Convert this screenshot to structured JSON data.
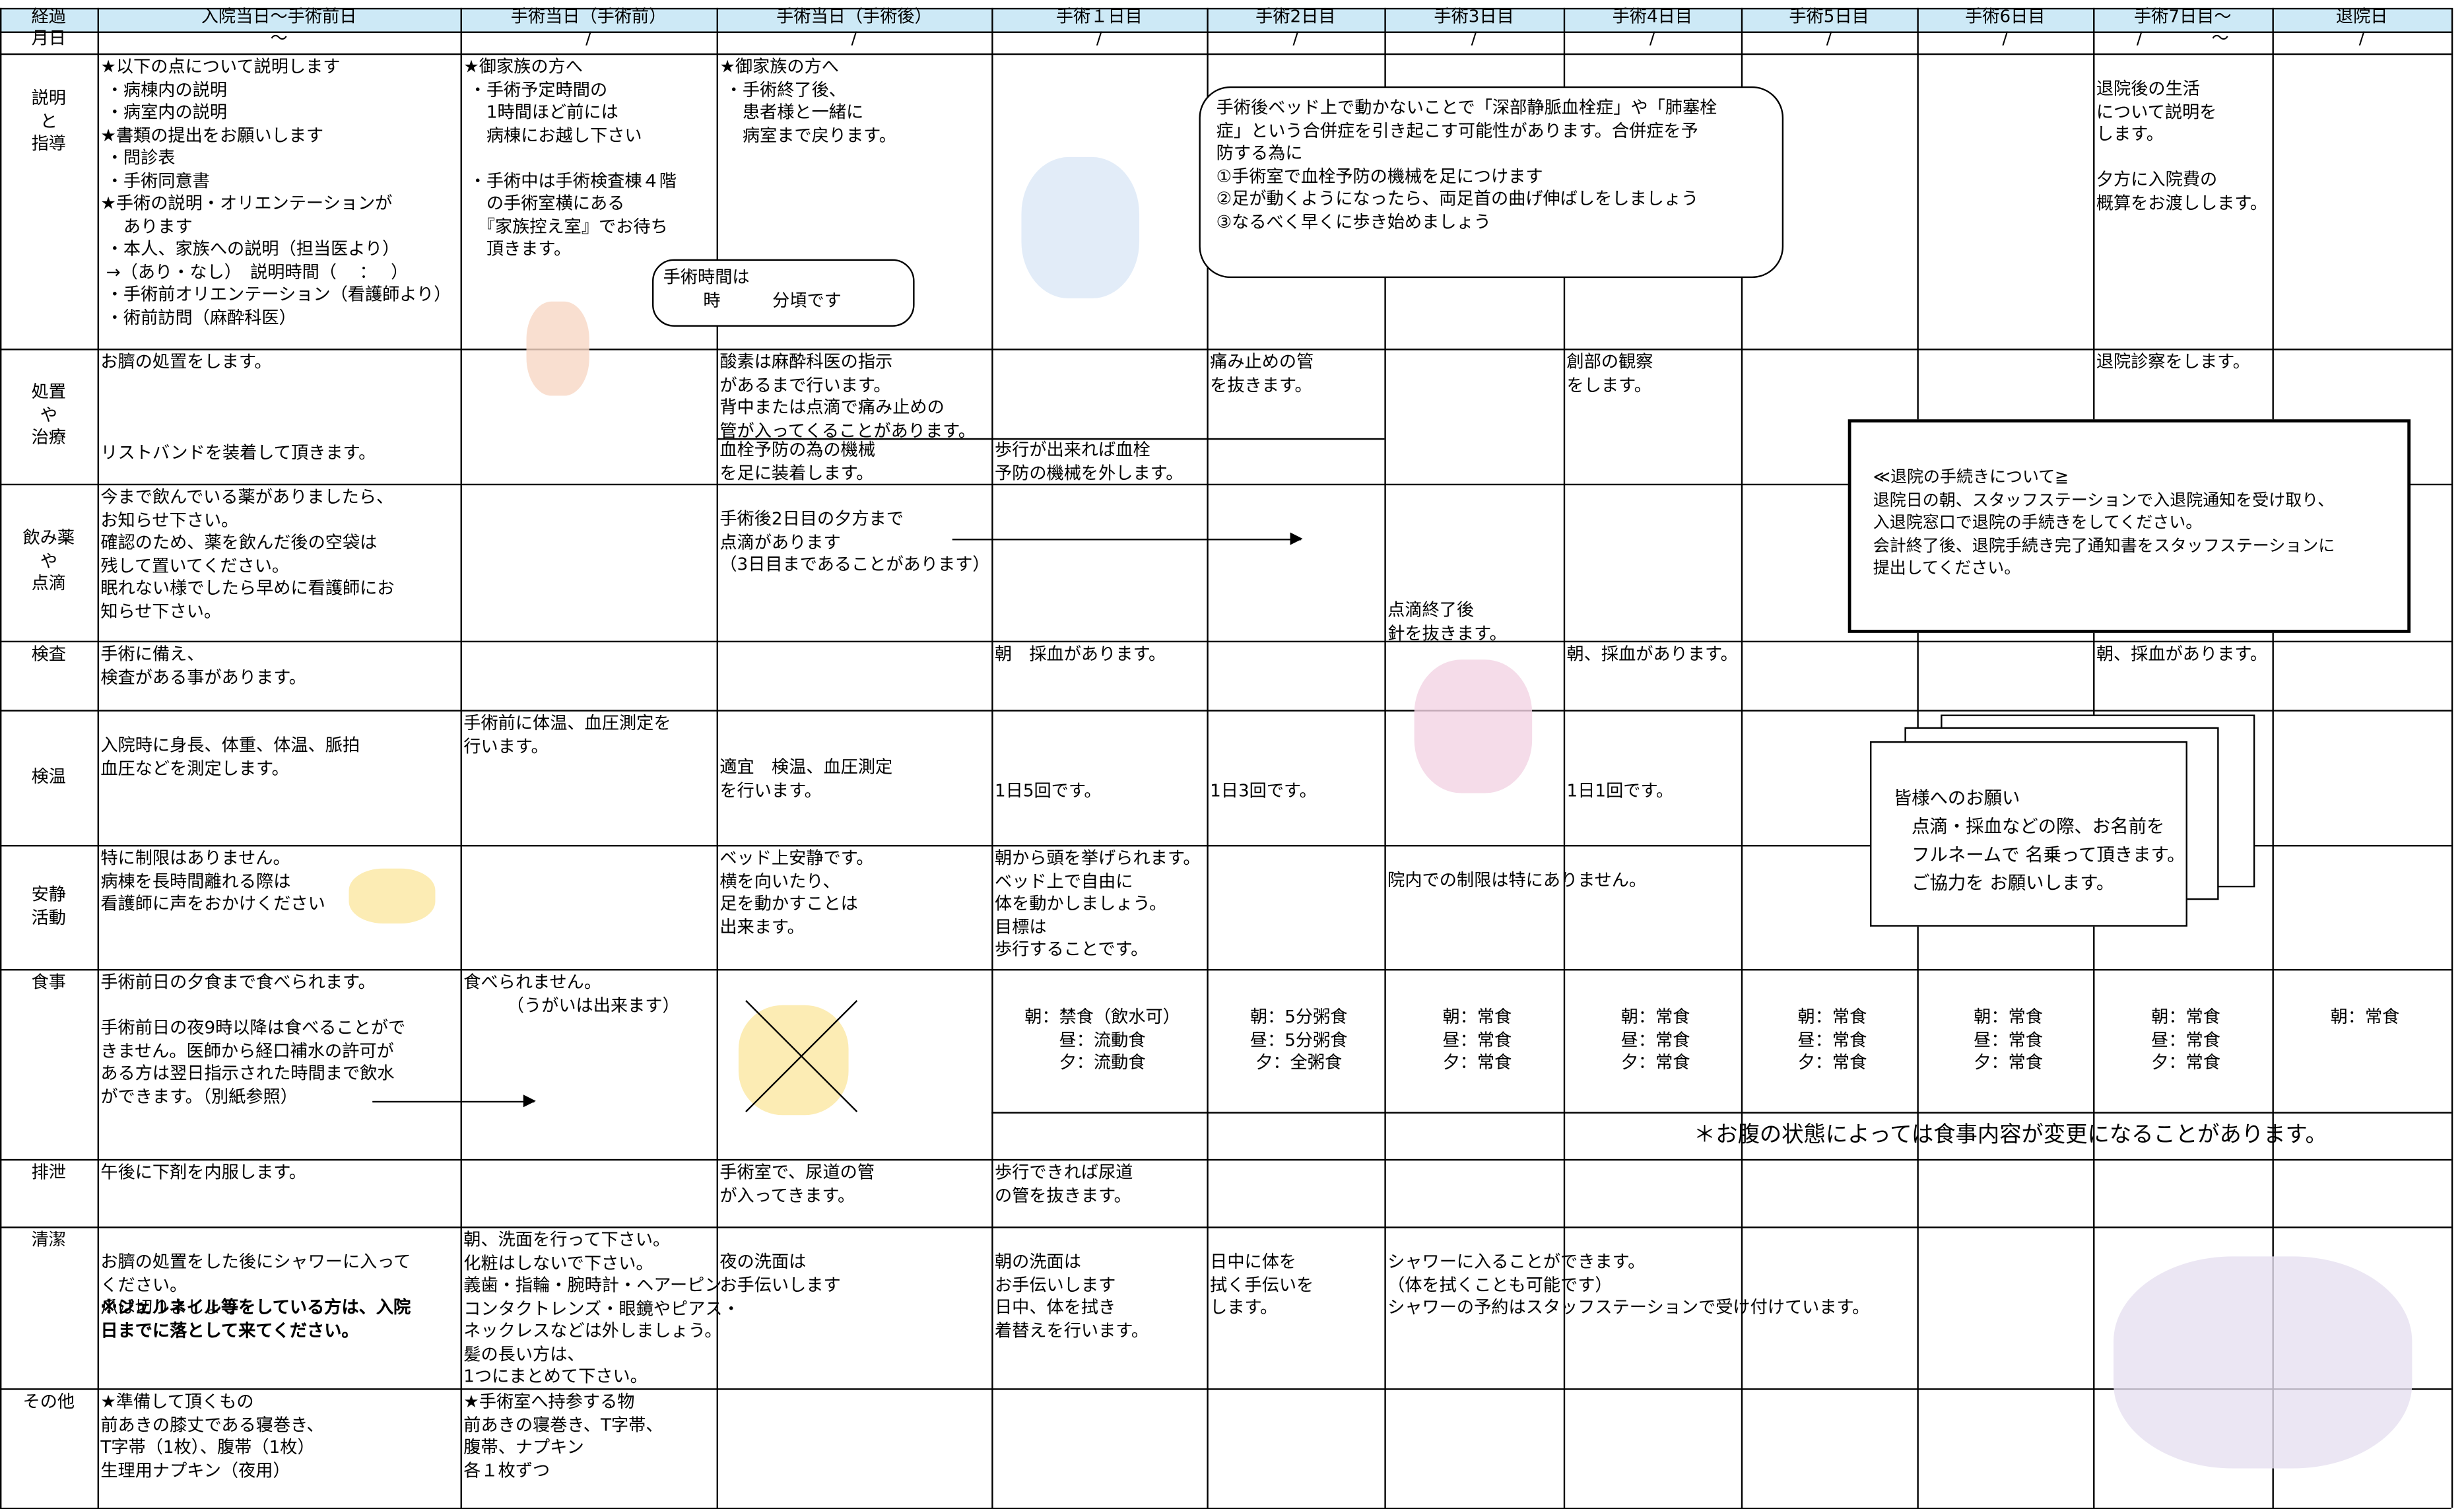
{
  "header": {
    "columns": [
      "経過",
      "入院当日～手術前日",
      "手術当日（手術前）",
      "手術当日（手術後）",
      "手術１日目",
      "手術2日目",
      "手術3日目",
      "手術4日目",
      "手術5日目",
      "手術6日目",
      "手術7日目～",
      "退院日"
    ]
  },
  "date_row": {
    "label": "月日",
    "marks": [
      "～",
      "/",
      "/",
      "/",
      "/",
      "/",
      "/",
      "/",
      "/",
      "/　　　　～",
      "/"
    ]
  },
  "rows": [
    {
      "label": "説明\nと\n指導",
      "cells": [
        "★以下の点について説明します\n ・病棟内の説明\n ・病室内の説明\n★書類の提出をお願いします\n ・問診表\n ・手術同意書\n★手術の説明・オリエンテーションが\n　 あります\n ・本人、家族への説明（担当医より）\n →（あり・なし）　説明時間（　 ：　 ）\n ・手術前オリエンテーション（看護師より）\n ・術前訪問（麻酔科医）",
        "★御家族の方へ\n ・手術予定時間の\n 　1時間ほど前には\n 　病棟にお越し下さい\n\n ・手術中は手術検査棟４階\n 　の手術室横にある\n 　『家族控え室』でお待ち\n 　頂きます。",
        "★御家族の方へ\n ・手術終了後、\n 　患者様と一緒に\n 　病室まで戻ります。",
        null,
        null,
        null,
        null,
        null,
        null,
        "退院後の生活\nについて説明を\nします。\n\n夕方に入院費の\n概算をお渡しします。",
        null
      ]
    },
    {
      "label": "処置\nや\n治療",
      "cells": [
        "お臍の処置をします。\n\n\n\nリストバンドを装着して頂きます。",
        null,
        "酸素は麻酔科医の指示\nがあるまで行います。\n背中または点滴で痛み止めの\n管が入ってくることがあります。",
        null,
        "痛み止めの管\nを抜きます。",
        null,
        "創部の観察\nをします。",
        null,
        null,
        "退院診察をします。",
        null
      ],
      "lower": [
        "血栓予防の為の機械\nを足に装着します。",
        "歩行が出来れば血栓\n予防の機械を外します。"
      ]
    },
    {
      "label": "飲み薬\nや\n点滴",
      "cells": [
        "今まで飲んでいる薬がありましたら、\nお知らせ下さい。\n確認のため、薬を飲んだ後の空袋は\n残して置いてください。\n眠れない様でしたら早めに看護師にお\n知らせ下さい。",
        null,
        "手術後2日目の夕方まで\n点滴があります\n（3日目まであることがあります）",
        null,
        null,
        "点滴終了後\n針を抜きます。",
        null,
        null,
        null,
        null,
        null
      ]
    },
    {
      "label": "検査",
      "cells": [
        "手術に備え、\n検査がある事があります。",
        null,
        null,
        "朝　採血があります。",
        null,
        null,
        "朝、採血があります。",
        null,
        null,
        "朝、採血があります。",
        null
      ]
    },
    {
      "label": "検温",
      "cells": [
        "入院時に身長、体重、体温、脈拍\n血圧などを測定します。",
        "手術前に体温、血圧測定を\n行います。",
        "適宜　検温、血圧測定\nを行います。",
        "1日5回です。",
        "1日3回です。",
        null,
        "1日1回です。",
        null,
        null,
        null,
        null
      ]
    },
    {
      "label": "安静\n活動",
      "cells": [
        "特に制限はありません。\n病棟を長時間離れる際は\n看護師に声をおかけください",
        null,
        "ベッド上安静です。\n横を向いたり、\n足を動かすことは\n出来ます。",
        "朝から頭を挙げられます。\nベッド上で自由に\n体を動かしましょう。\n目標は\n歩行することです。",
        null,
        "院内での制限は特にありません。",
        null,
        null,
        null,
        null,
        null
      ]
    },
    {
      "label": "食事",
      "cells": [
        "手術前日の夕食まで食べられます。\n\n手術前日の夜9時以降は食べることがで\nきません。医師から経口補水の許可が\nある方は翌日指示された時間まで飲水\nができます。（別紙参照）",
        "食べられません。\n　　　（うがいは出来ます）",
        null,
        "朝：禁食（飲水可）\n昼：流動食\n夕：流動食",
        "朝：5分粥食\n昼：5分粥食\n夕：全粥食",
        "朝：常食\n昼：常食\n夕：常食",
        "朝：常食\n昼：常食\n夕：常食",
        "朝：常食\n昼：常食\n夕：常食",
        "朝：常食\n昼：常食\n夕：常食",
        "朝：常食\n昼：常食\n夕：常食",
        "朝：常食"
      ],
      "note": "＊お腹の状態によっては食事内容が変更になることがあります。"
    },
    {
      "label": "排泄",
      "cells": [
        "午後に下剤を内服します。",
        null,
        "手術室で、尿道の管\nが入ってきます。",
        "歩行できれば尿道\nの管を抜きます。",
        null,
        null,
        null,
        null,
        null,
        null,
        null
      ]
    },
    {
      "label": "清潔",
      "cells": [
        "お臍の処置をした後にシャワーに入って\nください。\n爪は切りましょう",
        "朝、洗面を行って下さい。\n化粧はしないで下さい。\n義歯・指輪・腕時計・ヘアーピン\nコンタクトレンズ・眼鏡やピアス・\nネックレスなどは外しましょう。\n髪の長い方は、\n1つにまとめて下さい。",
        "夜の洗面は\nお手伝いします",
        "朝の洗面は\nお手伝いします\n日中、体を拭き\n着替えを行います。",
        "日中に体を\n拭く手伝いを\nします。",
        "シャワーに入ることができます。\n（体を拭くことも可能です）\nシャワーの予約はスタッフステーションで受け付けています。",
        null,
        null,
        null,
        null,
        null
      ],
      "warning": "※ジェルネイル等をしている方は、入院\n日までに落として来てください。"
    },
    {
      "label": "その他",
      "cells": [
        "★準備して頂くもの\n前あきの膝丈である寝巻き、\nT字帯（1枚）、腹帯（1枚）\n生理用ナプキン（夜用）",
        "★手術室へ持参する物\n前あきの寝巻き、T字帯、\n腹帯、ナプキン\n各１枚ずつ",
        null,
        null,
        null,
        null,
        null,
        null,
        null,
        null,
        null
      ]
    }
  ],
  "callouts": [
    "手術時間は\n　　 時　　　分頃です",
    "手術後ベッド上で動かないことで「深部静脈血栓症」や「肺塞栓\n症」という合併症を引き起こす可能性があります。合併症を予\n防する為に\n①手術室で血栓予防の機械を足につけます\n②足が動くようになったら、両足首の曲げ伸ばしをしましょう\n③なるべく早くに歩き始めましょう"
  ],
  "notices": [
    "≪退院の手続きについて≧\n退院日の朝、スタッフステーションで入退院通知を受け取り、\n入退院窓口で退院の手続きをしてください。\n会計終了後、退院手続き完了通知書をスタッフステーションに\n提出してください。",
    "皆様へのお願い\n　点滴・採血などの際、お名前を\n　フルネームで 名乗って頂きます。\n　ご協力を お願いします。"
  ]
}
